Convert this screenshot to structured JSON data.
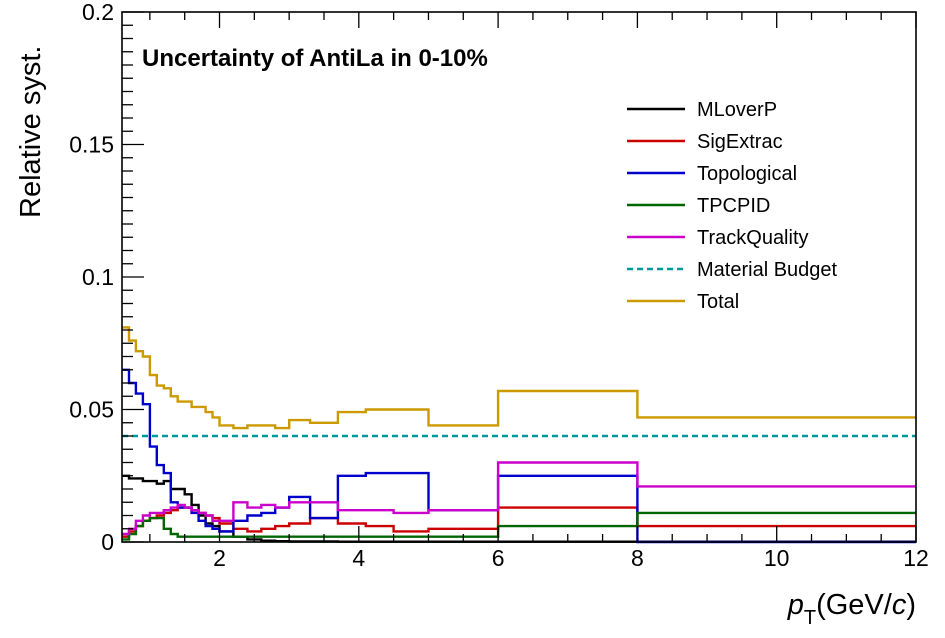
{
  "chart_data": {
    "type": "line",
    "title": "Uncertainty of AntiLa in 0-10%",
    "xlabel": {
      "p": "p",
      "sub": "T",
      "mid": "(GeV/",
      "c": "c",
      "end": ")"
    },
    "ylabel": "Relative syst.",
    "xlim": [
      0.6,
      12
    ],
    "ylim": [
      0,
      0.2
    ],
    "x_ticks": [
      2,
      4,
      6,
      8,
      10,
      12
    ],
    "x_tick_labels": [
      "2",
      "4",
      "6",
      "8",
      "10",
      "12"
    ],
    "y_ticks": [
      0,
      0.05,
      0.1,
      0.15,
      0.2
    ],
    "y_tick_labels": [
      "0",
      "0.05",
      "0.1",
      "0.15",
      "0.2"
    ],
    "grid": false,
    "legend_position": "top-right",
    "bin_edges": [
      0.6,
      0.7,
      0.8,
      0.9,
      1.0,
      1.1,
      1.2,
      1.3,
      1.4,
      1.5,
      1.6,
      1.7,
      1.8,
      1.9,
      2.0,
      2.2,
      2.4,
      2.6,
      2.8,
      3.0,
      3.3,
      3.7,
      4.1,
      4.5,
      5.0,
      6.0,
      8.0,
      12.0
    ],
    "series": [
      {
        "name": "MLoverP",
        "color": "#000000",
        "style": "solid",
        "values": [
          0.025,
          0.024,
          0.024,
          0.023,
          0.023,
          0.022,
          0.023,
          0.02,
          0.02,
          0.018,
          0.014,
          0.01,
          0.007,
          0.006,
          0.004,
          0.002,
          0.001,
          0.0005,
          0.0003,
          0.0002,
          0.0002,
          0.0001,
          0.0001,
          0.0001,
          0.0001,
          0.0001,
          0.0001
        ]
      },
      {
        "name": "SigExtrac",
        "color": "#cc0000",
        "style": "solid",
        "values": [
          0.002,
          0.004,
          0.006,
          0.008,
          0.009,
          0.01,
          0.011,
          0.012,
          0.013,
          0.013,
          0.012,
          0.011,
          0.01,
          0.009,
          0.007,
          0.005,
          0.004,
          0.005,
          0.006,
          0.007,
          0.009,
          0.007,
          0.006,
          0.004,
          0.005,
          0.013,
          0.006
        ]
      },
      {
        "name": "Topological",
        "color": "#0000cc",
        "style": "solid",
        "values": [
          0.065,
          0.06,
          0.056,
          0.052,
          0.036,
          0.029,
          0.026,
          0.015,
          0.013,
          0.013,
          0.011,
          0.008,
          0.006,
          0.005,
          0.004,
          0.008,
          0.01,
          0.011,
          0.013,
          0.017,
          0.009,
          0.025,
          0.026,
          0.026,
          0.012,
          0.025,
          0.0
        ]
      },
      {
        "name": "TPCPID",
        "color": "#006600",
        "style": "solid",
        "values": [
          0.001,
          0.003,
          0.006,
          0.008,
          0.009,
          0.009,
          0.005,
          0.003,
          0.002,
          0.002,
          0.002,
          0.002,
          0.002,
          0.002,
          0.002,
          0.002,
          0.002,
          0.002,
          0.002,
          0.002,
          0.002,
          0.002,
          0.002,
          0.002,
          0.002,
          0.006,
          0.011
        ]
      },
      {
        "name": "TrackQuality",
        "color": "#cc00cc",
        "style": "solid",
        "values": [
          0.003,
          0.005,
          0.008,
          0.01,
          0.011,
          0.011,
          0.012,
          0.013,
          0.014,
          0.013,
          0.012,
          0.011,
          0.01,
          0.008,
          0.008,
          0.015,
          0.013,
          0.014,
          0.013,
          0.015,
          0.015,
          0.012,
          0.012,
          0.011,
          0.012,
          0.03,
          0.021
        ]
      },
      {
        "name": "Material Budget",
        "color": "#009999",
        "style": "dashed",
        "constant": 0.04
      },
      {
        "name": "Total",
        "color": "#cc9900",
        "style": "solid",
        "values": [
          0.081,
          0.076,
          0.072,
          0.07,
          0.063,
          0.059,
          0.058,
          0.055,
          0.053,
          0.053,
          0.051,
          0.051,
          0.049,
          0.047,
          0.044,
          0.043,
          0.044,
          0.044,
          0.043,
          0.046,
          0.045,
          0.049,
          0.05,
          0.05,
          0.044,
          0.057,
          0.047
        ]
      }
    ]
  }
}
